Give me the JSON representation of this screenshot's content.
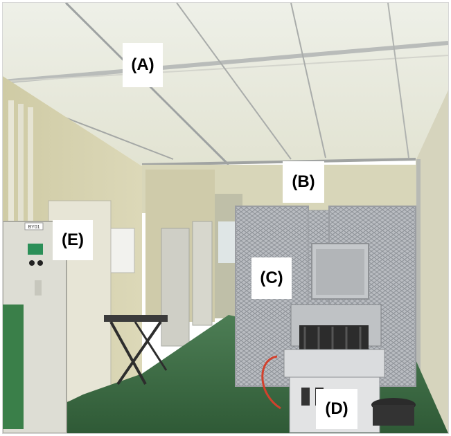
{
  "labels": {
    "a": "(A)",
    "b": "(B)",
    "c": "(C)",
    "d": "(D)",
    "e": "(E)"
  },
  "cabinet_tag": "BY01",
  "colors": {
    "ceiling": "#e9ebe0",
    "wall": "#d9d6b4",
    "floor": "#3f6f46",
    "steel": "#c9ccce",
    "cabinet": "#ddddd4"
  }
}
